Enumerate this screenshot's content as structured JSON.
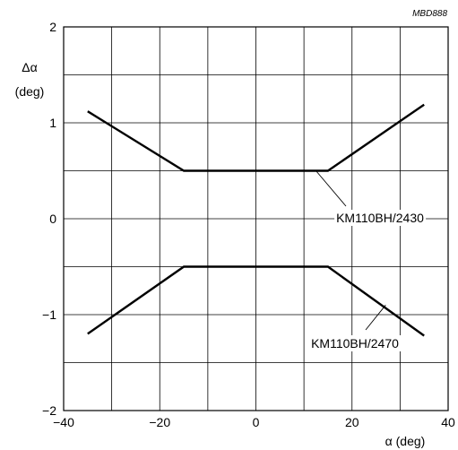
{
  "figure_code": "MBD888",
  "chart_data": {
    "type": "line",
    "xlabel": "α  (deg)",
    "ylabel_line1": "Δα",
    "ylabel_line2": "(deg)",
    "xlim": [
      -40,
      40
    ],
    "ylim": [
      -2,
      2
    ],
    "x_grid_step": 10,
    "y_grid_step": 0.5,
    "x_ticks": [
      -40,
      -20,
      0,
      20,
      40
    ],
    "x_tick_labels": [
      "−40",
      "−20",
      "0",
      "20",
      "40"
    ],
    "y_ticks": [
      2,
      1,
      0,
      -1,
      -2
    ],
    "y_tick_labels": [
      "2",
      "1",
      "0",
      "−1",
      "−2"
    ],
    "grid": true,
    "series": [
      {
        "name": "KM110BH/2430",
        "points": [
          [
            -35,
            1.12
          ],
          [
            -15,
            0.5
          ],
          [
            15,
            0.5
          ],
          [
            35,
            1.19
          ]
        ]
      },
      {
        "name": "KM110BH/2470",
        "points": [
          [
            -35,
            -1.2
          ],
          [
            -15,
            -0.5
          ],
          [
            15,
            -0.5
          ],
          [
            35,
            -1.22
          ]
        ]
      }
    ],
    "annotations": [
      {
        "text": "KM110BH/2430",
        "point": [
          12.5,
          0.5
        ],
        "label_at": [
          20,
          0
        ]
      },
      {
        "text": "KM110BH/2470",
        "point": [
          27,
          -0.9
        ],
        "label_at": [
          21,
          -1.35
        ]
      }
    ]
  }
}
